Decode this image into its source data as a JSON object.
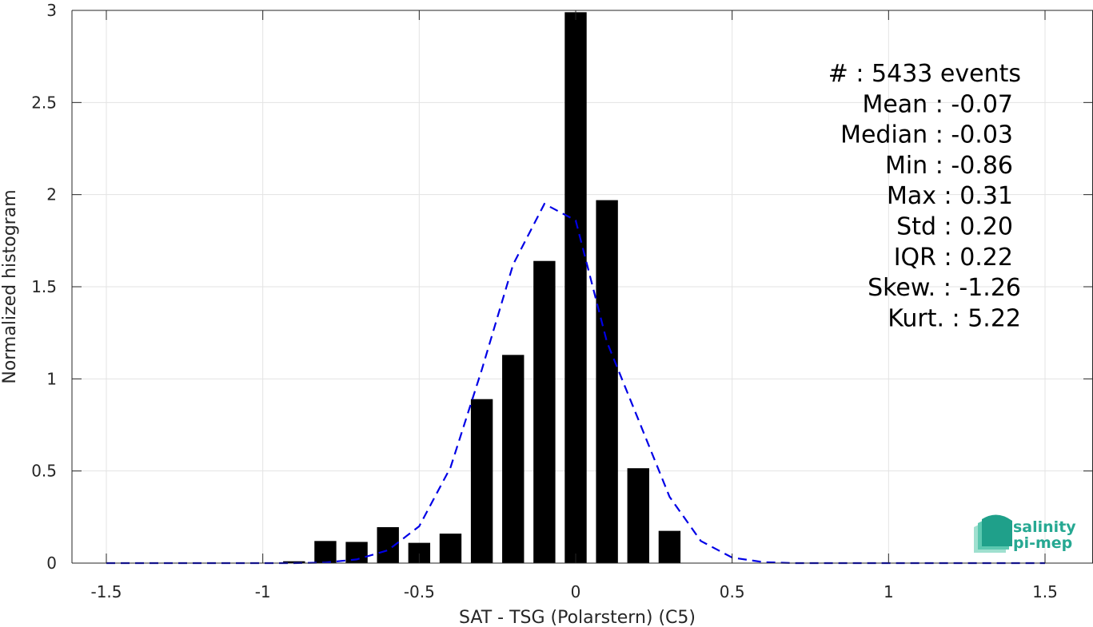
{
  "chart_data": {
    "type": "bar",
    "xlabel": "SAT - TSG (Polarstern) (C5)",
    "ylabel": "Normalized histogram",
    "xlim": [
      -1.6,
      1.6
    ],
    "ylim": [
      0,
      3
    ],
    "x_ticks": [
      -1.5,
      -1,
      -0.5,
      0,
      0.5,
      1,
      1.5
    ],
    "x_tick_labels": [
      "-1.5",
      "-1",
      "-0.5",
      "0",
      "0.5",
      "1",
      "1.5"
    ],
    "y_ticks": [
      0,
      0.5,
      1,
      1.5,
      2,
      2.5,
      3
    ],
    "y_tick_labels": [
      "0",
      "0.5",
      "1",
      "1.5",
      "2",
      "2.5",
      "3"
    ],
    "grid": true,
    "bar_width": 0.07,
    "histogram": {
      "color": "#000000",
      "x": [
        -0.9,
        -0.8,
        -0.7,
        -0.6,
        -0.5,
        -0.4,
        -0.3,
        -0.2,
        -0.1,
        0.0,
        0.1,
        0.2,
        0.3
      ],
      "values": [
        0.01,
        0.12,
        0.115,
        0.195,
        0.11,
        0.16,
        0.89,
        1.13,
        1.64,
        2.99,
        1.97,
        0.515,
        0.175
      ]
    },
    "fit_curve": {
      "style": "dashed",
      "color": "#0000e6",
      "x": [
        -1.5,
        -1.4,
        -1.3,
        -1.2,
        -1.1,
        -1.0,
        -0.9,
        -0.8,
        -0.7,
        -0.6,
        -0.5,
        -0.4,
        -0.3,
        -0.2,
        -0.1,
        0.0,
        0.1,
        0.2,
        0.3,
        0.4,
        0.5,
        0.6,
        0.7,
        0.8,
        0.9,
        1.0,
        1.1,
        1.2,
        1.3,
        1.4,
        1.5
      ],
      "y": [
        0,
        0,
        0,
        0,
        0,
        0,
        0,
        0.003,
        0.02,
        0.07,
        0.2,
        0.52,
        1.05,
        1.62,
        1.95,
        1.86,
        1.2,
        0.78,
        0.36,
        0.12,
        0.03,
        0.005,
        0,
        0,
        0,
        0,
        0,
        0,
        0,
        0,
        0
      ]
    },
    "annotations": [
      "#  : 5433 events",
      "Mean : -0.07",
      "Median : -0.03",
      "Min : -0.86",
      "Max : 0.31",
      "Std : 0.20",
      "IQR : 0.22",
      "Skew. : -1.26",
      "Kurt. : 5.22"
    ]
  },
  "logo": {
    "line1": "salinity",
    "line2": "pi-mep",
    "colors": [
      "#1fa08a",
      "#5cc8b0",
      "#9fe0cf"
    ]
  }
}
